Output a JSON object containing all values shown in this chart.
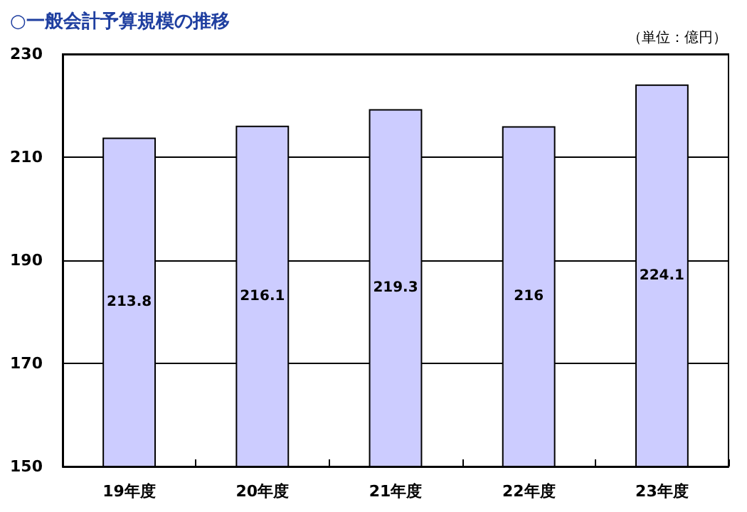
{
  "chart_data": {
    "type": "bar",
    "title": "○一般会計予算規模の推移",
    "annotations": [
      "（単位：億円）"
    ],
    "categories": [
      "19年度",
      "20年度",
      "21年度",
      "22年度",
      "23年度"
    ],
    "values": [
      213.8,
      216.1,
      219.3,
      216,
      224.1
    ],
    "color": "#ccccff",
    "ylim": [
      150,
      230
    ],
    "yticks": [
      150,
      170,
      190,
      210,
      230
    ],
    "grid": "y",
    "data_labels": true
  }
}
